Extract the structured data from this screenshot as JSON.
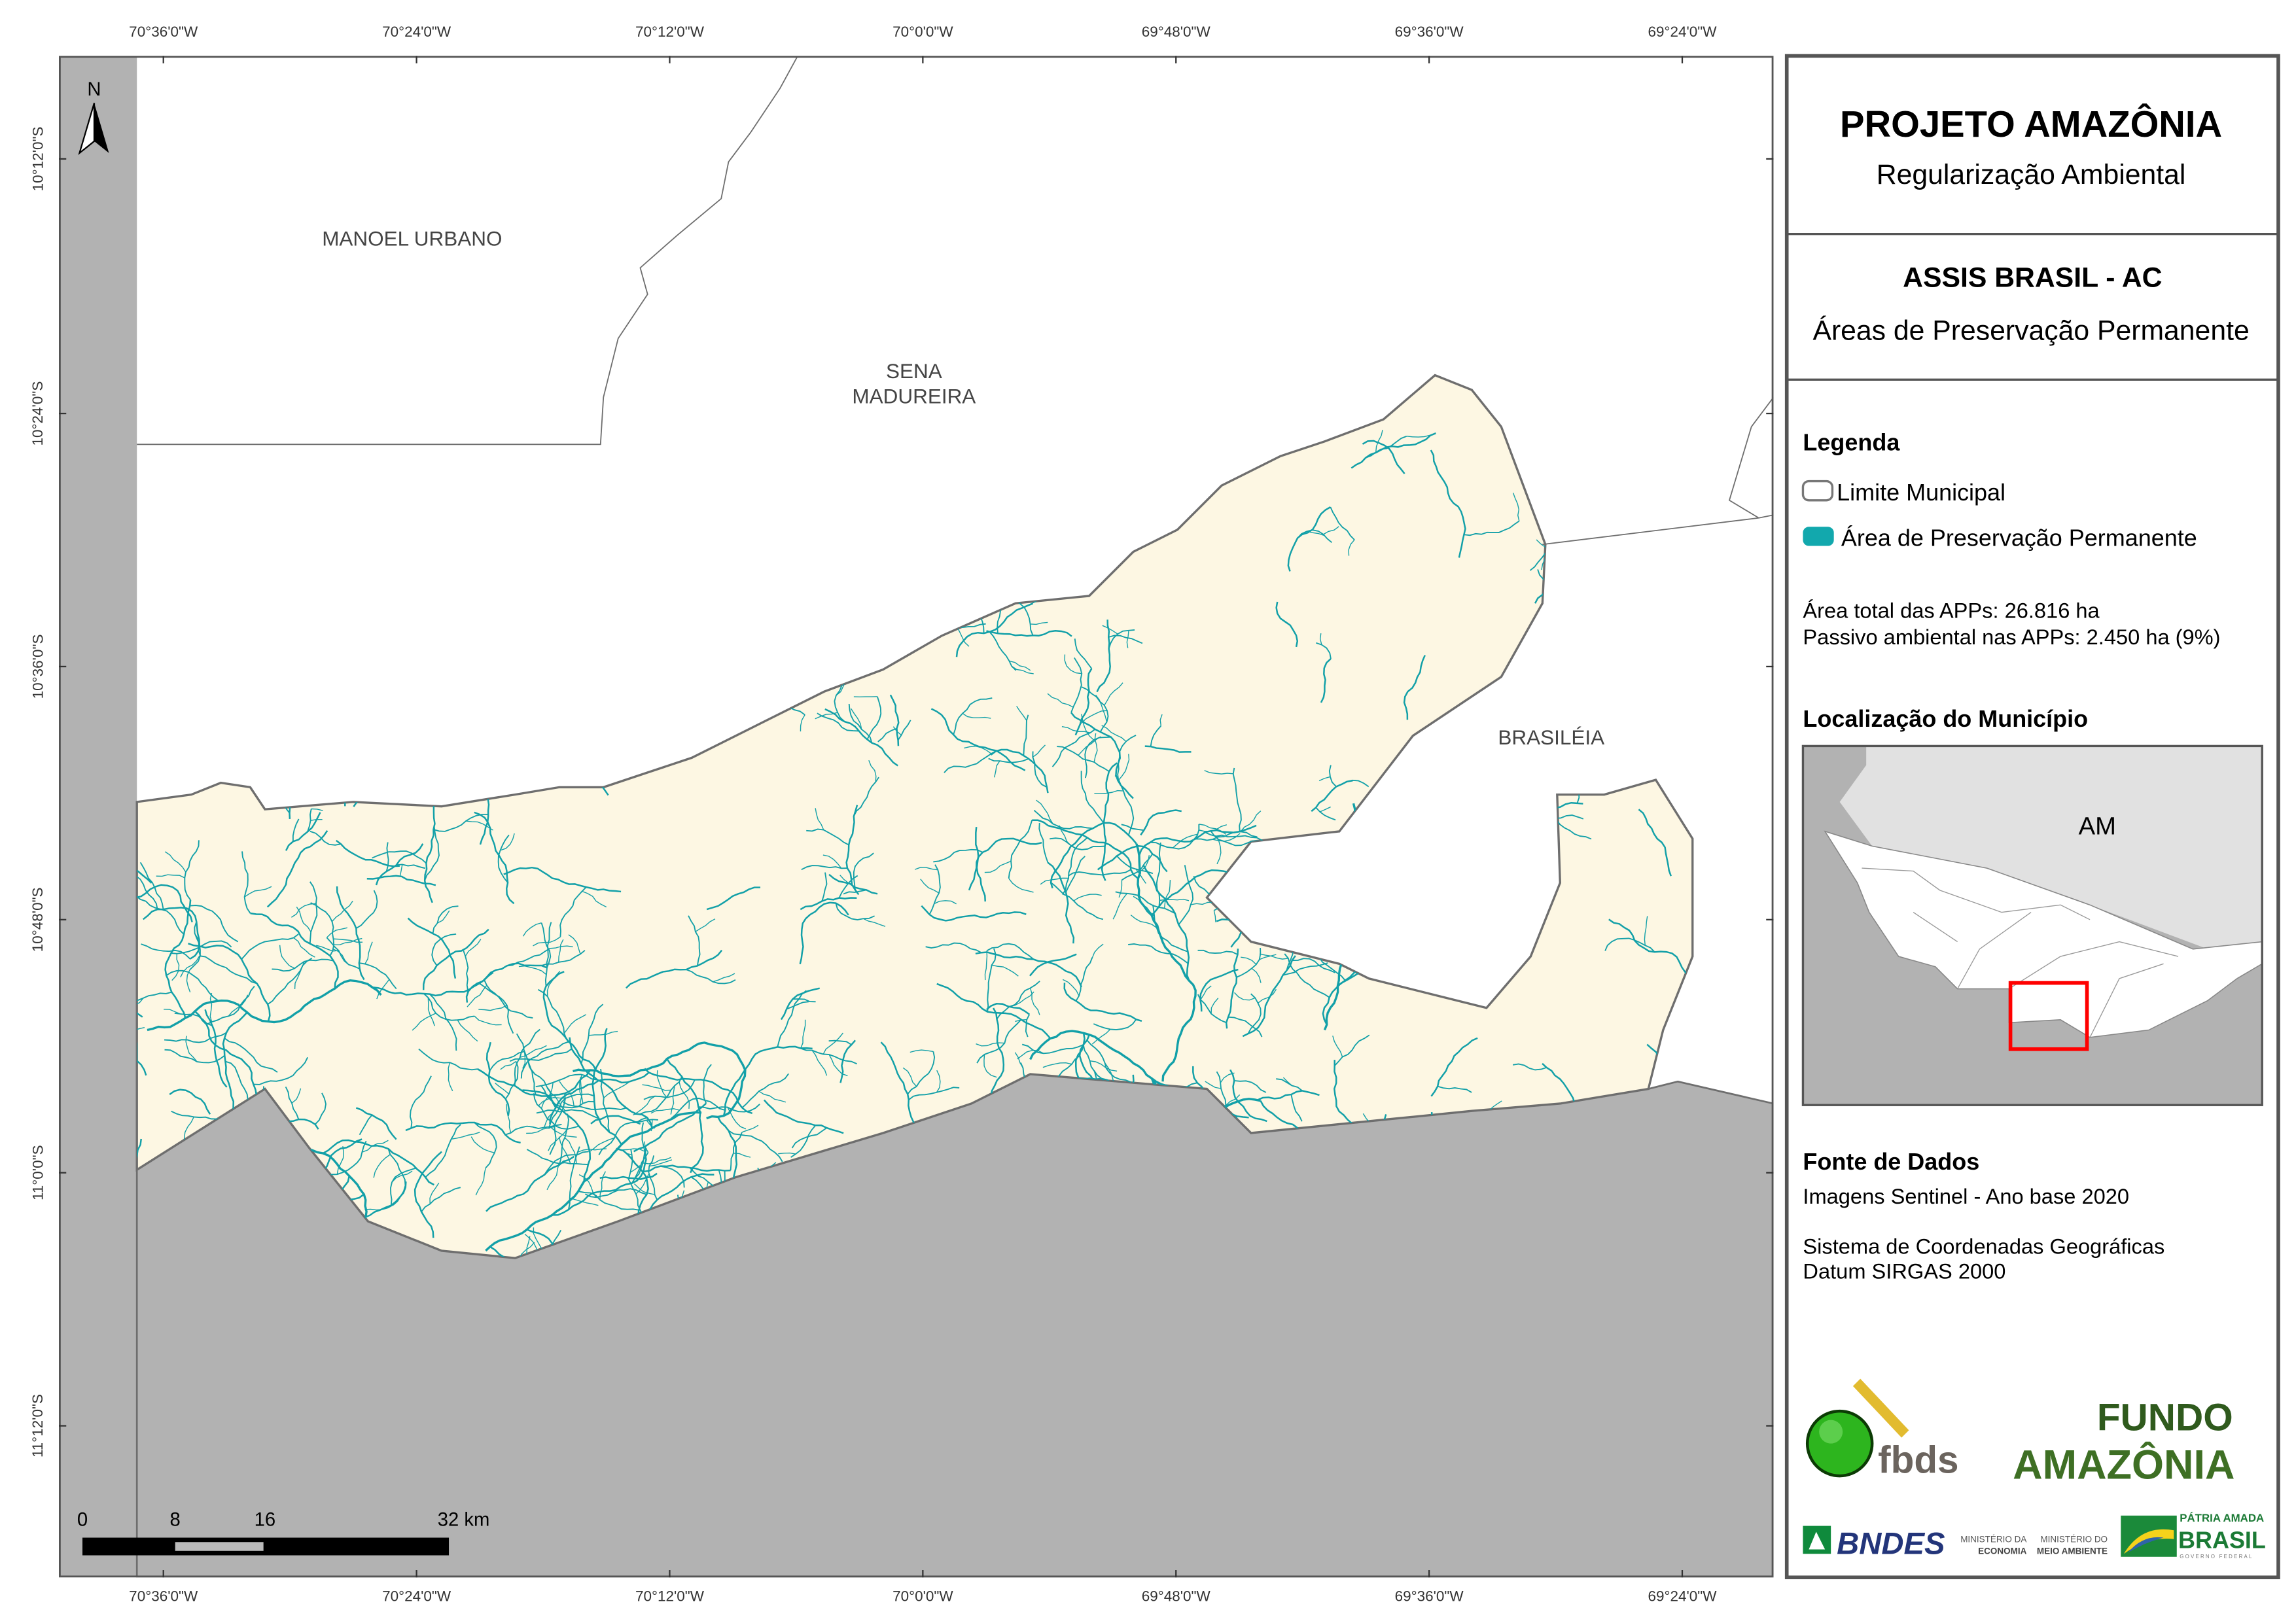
{
  "header": {
    "project_title": "PROJETO AMAZÔNIA",
    "project_subtitle": "Regularização Ambiental",
    "municipality_title": "ASSIS BRASIL - AC",
    "map_theme": "Áreas de Preservação Permanente"
  },
  "legend": {
    "title": "Legenda",
    "items": [
      {
        "label": "Limite Municipal",
        "color": "#ffffff",
        "stroke": "#777777"
      },
      {
        "label": "Área de Preservação Permanente",
        "color": "#12a8ad"
      }
    ],
    "stat_total_label": "Área total das APPs:",
    "stat_total_value": "26.816 ha",
    "stat_passivo_label": "Passivo ambiental nas APPs:",
    "stat_passivo_value": "2.450 ha (9%)"
  },
  "location": {
    "title": "Localização do Município",
    "state_label": "AM",
    "highlight_color": "#ff0000"
  },
  "sources": {
    "title": "Fonte de Dados",
    "imagery": "Imagens Sentinel - Ano base 2020",
    "crs": "Sistema de Coordenadas Geográficas",
    "datum": "Datum SIRGAS 2000"
  },
  "logos": {
    "fbds": "fbds",
    "fundo_line1": "FUNDO",
    "fundo_line2": "AMAZÔNIA",
    "bndes": "BNDES",
    "min_economia_1": "MINISTÉRIO DA",
    "min_economia_2": "ECONOMIA",
    "min_ambiente_1": "MINISTÉRIO DO",
    "min_ambiente_2": "MEIO AMBIENTE",
    "patria_1": "PÁTRIA AMADA",
    "patria_2": "BRASIL",
    "patria_3": "GOVERNO FEDERAL"
  },
  "map": {
    "longitude_ticks": [
      "70°36'0\"W",
      "70°24'0\"W",
      "70°12'0\"W",
      "70°0'0\"W",
      "69°48'0\"W",
      "69°36'0\"W",
      "69°24'0\"W"
    ],
    "latitude_ticks": [
      "10°12'0\"S",
      "10°24'0\"S",
      "10°36'0\"S",
      "10°48'0\"S",
      "11°0'0\"S",
      "11°12'0\"S"
    ],
    "municipalities": {
      "manoel_urbano": "MANOEL URBANO",
      "sena_1": "SENA",
      "sena_2": "MADUREIRA",
      "brasileia": "BRASILÉIA"
    },
    "north_label": "N",
    "scale_labels": [
      "0",
      "8",
      "16",
      "32 km"
    ],
    "colors": {
      "municipality_fill": "#fdf7e3",
      "outside_fill": "#b2b2b2",
      "river": "#12a0a8",
      "boundary": "#6e6e6e"
    }
  }
}
